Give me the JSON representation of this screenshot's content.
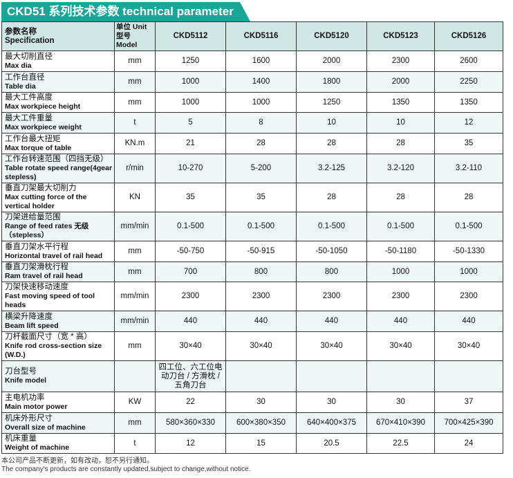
{
  "title": "CKD51 系列技术参数 technical parameter",
  "header": {
    "spec_cn": "参数名称",
    "spec_en": "Specification",
    "unit_cn": "单位 Unit",
    "model_cn": "型号 Model",
    "models": [
      "CKD5112",
      "CKD5116",
      "CKD5120",
      "CKD5123",
      "CKD5126"
    ]
  },
  "rows": [
    {
      "cn": "最大切削直径",
      "en": "Max dia",
      "unit": "mm",
      "values": [
        "1250",
        "1600",
        "2000",
        "2300",
        "2600"
      ]
    },
    {
      "cn": "工作台直径",
      "en": "Table dia",
      "unit": "mm",
      "values": [
        "1000",
        "1400",
        "1800",
        "2000",
        "2250"
      ]
    },
    {
      "cn": "最大工件高度",
      "en": "Max workpiece height",
      "unit": "mm",
      "values": [
        "1000",
        "1000",
        "1250",
        "1350",
        "1350"
      ]
    },
    {
      "cn": "最大工件重量",
      "en": "Max workpiece weight",
      "unit": "t",
      "values": [
        "5",
        "8",
        "10",
        "10",
        "12"
      ]
    },
    {
      "cn": "工作台最大扭矩",
      "en": "Max torque of table",
      "unit": "KN.m",
      "values": [
        "21",
        "28",
        "28",
        "28",
        "35"
      ]
    },
    {
      "cn": "工作台转速范围（四挡无级）",
      "en": "Table rotate speed range(4gear stepless)",
      "unit": "r/min",
      "values": [
        "10-270",
        "5-200",
        "3.2-125",
        "3.2-120",
        "3.2-110"
      ]
    },
    {
      "cn": "垂直刀架最大切削力",
      "en": "Max cutting force of the vertical holder",
      "unit": "KN",
      "values": [
        "35",
        "35",
        "28",
        "28",
        "28"
      ]
    },
    {
      "cn": "刀架进给量范围",
      "en": "Range of feed rates 无级（stepless）",
      "unit": "mm/min",
      "values": [
        "0.1-500",
        "0.1-500",
        "0.1-500",
        "0.1-500",
        "0.1-500"
      ]
    },
    {
      "cn": "垂直刀架水平行程",
      "en": "Horizontal travel of rail head",
      "unit": "mm",
      "values": [
        "-50-750",
        "-50-915",
        "-50-1050",
        "-50-1180",
        "-50-1330"
      ]
    },
    {
      "cn": "垂直刀架滑枕行程",
      "en": "Ram travel of rail head",
      "unit": "mm",
      "values": [
        "700",
        "800",
        "800",
        "1000",
        "1000"
      ]
    },
    {
      "cn": "刀架快速移动速度",
      "en": "Fast moving speed of tool heads",
      "unit": "mm/min",
      "values": [
        "2300",
        "2300",
        "2300",
        "2300",
        "2300"
      ]
    },
    {
      "cn": "横梁升降速度",
      "en": "Beam lift speed",
      "unit": "mm/min",
      "values": [
        "440",
        "440",
        "440",
        "440",
        "440"
      ]
    },
    {
      "cn": "刀杆截面尺寸（宽 * 高）",
      "en": "Knife rod cross-section size (W.D.)",
      "unit": "mm",
      "values": [
        "30×40",
        "30×40",
        "30×40",
        "30×40",
        "30×40"
      ]
    },
    {
      "cn": "刀台型号",
      "en": "Knife model",
      "unit": "",
      "values": [
        "四工位、六工位电动刀台 / 方滑枕 / 五角刀台",
        "",
        "",
        "",
        ""
      ]
    },
    {
      "cn": "主电机功率",
      "en": "Main motor power",
      "unit": "KW",
      "values": [
        "22",
        "30",
        "30",
        "30",
        "37"
      ]
    },
    {
      "cn": "机床外形尺寸",
      "en": "Overall size of machine",
      "unit": "mm",
      "values": [
        "580×360×330",
        "600×380×350",
        "640×400×375",
        "670×410×390",
        "700×425×390"
      ]
    },
    {
      "cn": "机床重量",
      "en": "Weight of machine",
      "unit": "t",
      "values": [
        "12",
        "15",
        "20.5",
        "22.5",
        "24"
      ]
    }
  ],
  "footer": {
    "cn": "本公司产品不断更新，如有改动，恕不另行通知。",
    "en": "The company's products are constantly updated,subject to change,without notice."
  },
  "colors": {
    "title_bg": "#17a697",
    "header_bg": "#cfe8e6",
    "row_tint": "#eef7f6"
  }
}
